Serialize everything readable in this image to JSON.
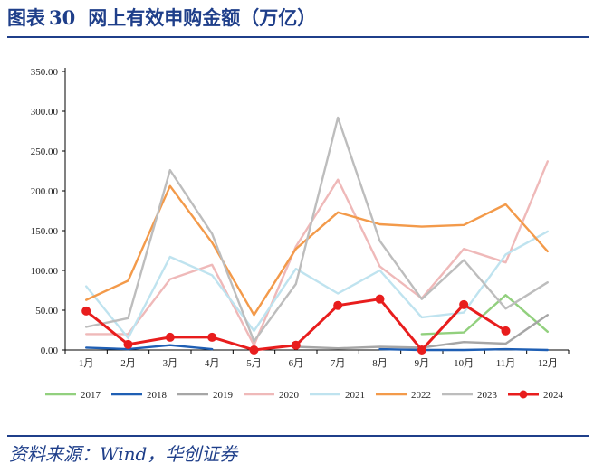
{
  "header": {
    "title_prefix": "图表",
    "title_number": "30",
    "title_text": "网上有效申购金额（万亿）"
  },
  "footer": {
    "source": "资料来源：Wind，华创证券"
  },
  "chart_data": {
    "type": "line",
    "title": "网上有效申购金额（万亿）",
    "categories": [
      "1月",
      "2月",
      "3月",
      "4月",
      "5月",
      "6月",
      "7月",
      "8月",
      "9月",
      "10月",
      "11月",
      "12月"
    ],
    "y_ticks": [
      "0.00",
      "50.00",
      "100.00",
      "150.00",
      "200.00",
      "250.00",
      "300.00",
      "350.00"
    ],
    "ylim": [
      0,
      350
    ],
    "legend_position": "bottom",
    "grid": false,
    "series": [
      {
        "name": "2017",
        "color": "#92d07e",
        "marker": false,
        "values": [
          null,
          null,
          null,
          null,
          null,
          null,
          null,
          null,
          20,
          22,
          69,
          23
        ]
      },
      {
        "name": "2018",
        "color": "#1f5fb4",
        "marker": false,
        "values": [
          3,
          1,
          6,
          1,
          null,
          null,
          null,
          1,
          0,
          0,
          1,
          0
        ]
      },
      {
        "name": "2019",
        "color": "#a6a6a6",
        "marker": false,
        "values": [
          null,
          null,
          null,
          null,
          null,
          4,
          2,
          4,
          3,
          10,
          8,
          44
        ]
      },
      {
        "name": "2020",
        "color": "#efb9b9",
        "marker": false,
        "values": [
          20,
          20,
          89,
          107,
          6,
          130,
          214,
          105,
          65,
          127,
          110,
          237
        ]
      },
      {
        "name": "2021",
        "color": "#bfe3ef",
        "marker": false,
        "values": [
          80,
          15,
          117,
          94,
          24,
          102,
          71,
          100,
          41,
          47,
          120,
          149
        ]
      },
      {
        "name": "2022",
        "color": "#f39a4a",
        "marker": false,
        "values": [
          63,
          87,
          206,
          135,
          44,
          127,
          173,
          158,
          155,
          157,
          183,
          124
        ]
      },
      {
        "name": "2023",
        "color": "#bdbdbd",
        "marker": false,
        "values": [
          29,
          40,
          226,
          146,
          11,
          83,
          292,
          137,
          64,
          113,
          52,
          85
        ]
      },
      {
        "name": "2024",
        "color": "#e81d1d",
        "marker": true,
        "values": [
          49,
          7,
          16,
          16,
          0,
          6,
          56,
          64,
          0,
          57,
          24,
          null
        ]
      }
    ]
  }
}
